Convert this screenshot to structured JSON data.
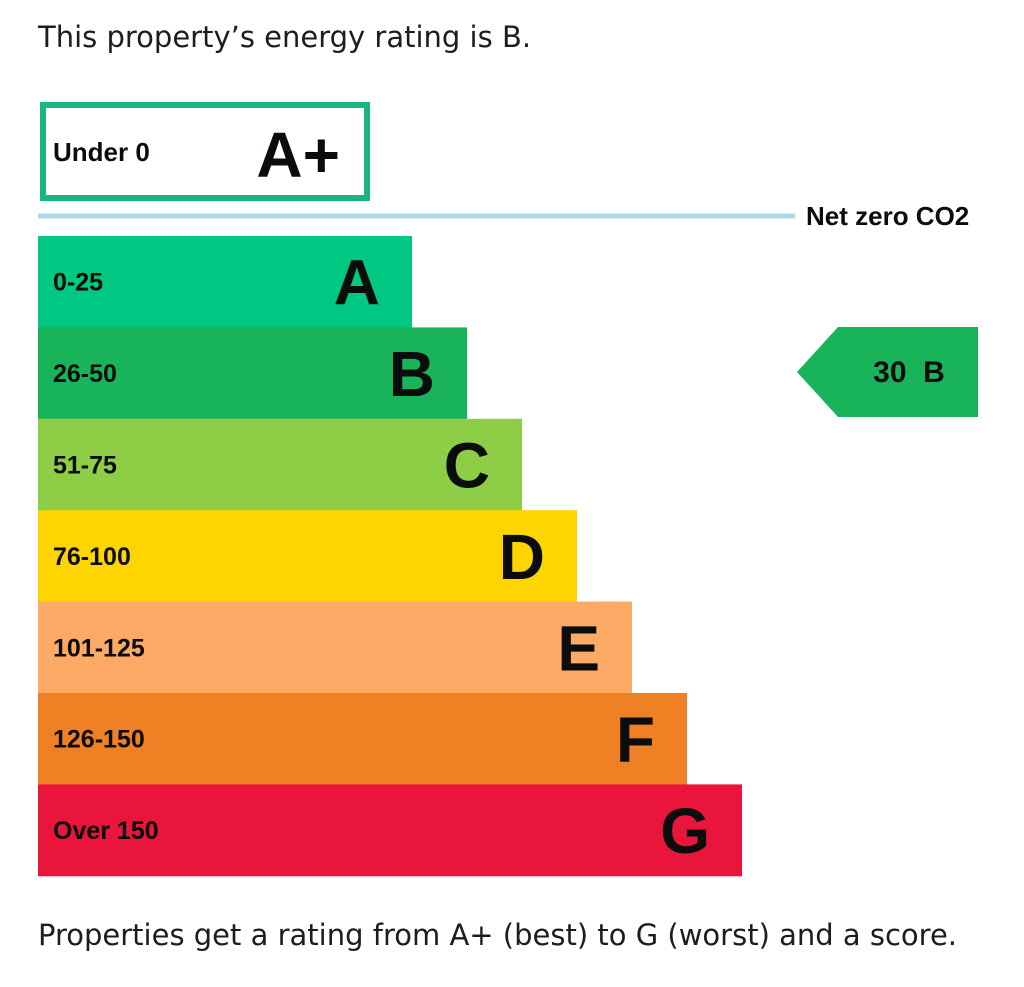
{
  "intro_text": "This property’s energy rating is B.",
  "outro_text": "Properties get a rating from A+ (best) to G (worst) and a score.",
  "net_zero_label": "Net zero CO2",
  "chart_data": {
    "type": "bar",
    "categories": [
      "A+",
      "A",
      "B",
      "C",
      "D",
      "E",
      "F",
      "G"
    ],
    "bands": [
      {
        "letter": "A+",
        "range": "Under 0",
        "color": "#19b77f",
        "style": "outlined"
      },
      {
        "letter": "A",
        "range": "0-25",
        "color": "#00c781"
      },
      {
        "letter": "B",
        "range": "26-50",
        "color": "#19b459"
      },
      {
        "letter": "C",
        "range": "51-75",
        "color": "#8dce46"
      },
      {
        "letter": "D",
        "range": "76-100",
        "color": "#ffd500"
      },
      {
        "letter": "E",
        "range": "101-125",
        "color": "#fcaa65"
      },
      {
        "letter": "F",
        "range": "126-150",
        "color": "#ef8023"
      },
      {
        "letter": "G",
        "range": "Over 150",
        "color": "#e9153b"
      }
    ],
    "current": {
      "score": 30,
      "letter": "B",
      "label": "30  B",
      "color": "#19b459"
    },
    "net_zero_line_color": "#add8e6"
  }
}
